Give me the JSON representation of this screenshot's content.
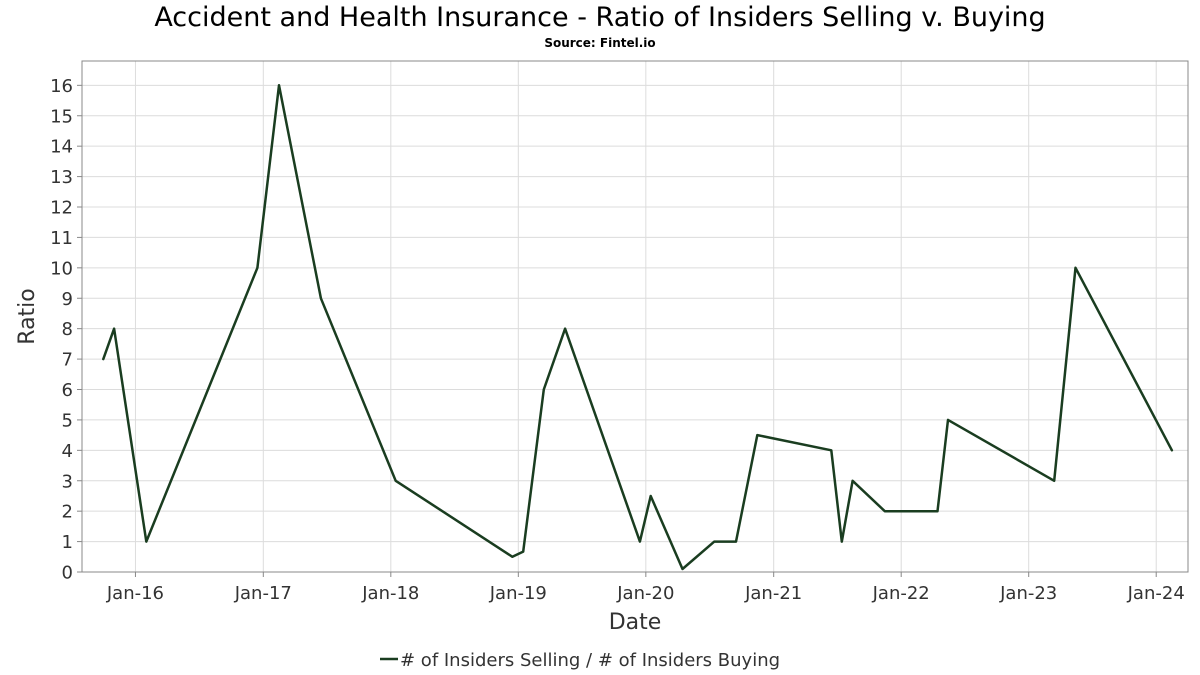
{
  "chart_data": {
    "type": "line",
    "title": "Accident and Health Insurance - Ratio of Insiders Selling v. Buying",
    "subtitle": "Source: Fintel.io",
    "xlabel": "Date",
    "ylabel": "Ratio",
    "xlim": [
      "2015-08-01",
      "2024-04-01"
    ],
    "ylim": [
      0,
      16.8
    ],
    "y_ticks": [
      "0",
      "1",
      "2",
      "3",
      "4",
      "5",
      "6",
      "7",
      "8",
      "9",
      "10",
      "11",
      "12",
      "13",
      "14",
      "15",
      "16"
    ],
    "x_ticks": [
      {
        "date": "2016-01-01",
        "label": "Jan-16"
      },
      {
        "date": "2017-01-01",
        "label": "Jan-17"
      },
      {
        "date": "2018-01-01",
        "label": "Jan-18"
      },
      {
        "date": "2019-01-01",
        "label": "Jan-19"
      },
      {
        "date": "2020-01-01",
        "label": "Jan-20"
      },
      {
        "date": "2021-01-01",
        "label": "Jan-21"
      },
      {
        "date": "2022-01-01",
        "label": "Jan-22"
      },
      {
        "date": "2023-01-01",
        "label": "Jan-23"
      },
      {
        "date": "2024-01-01",
        "label": "Jan-24"
      }
    ],
    "grid": true,
    "legend_position": "bottom-center",
    "series": [
      {
        "name": "# of Insiders Selling / # of Insiders Buying",
        "color": "#1a3d20",
        "x": [
          "2015-10-01",
          "2015-11-01",
          "2016-02-01",
          "2016-12-15",
          "2017-02-15",
          "2017-06-15",
          "2018-01-15",
          "2018-12-15",
          "2019-01-15",
          "2019-03-15",
          "2019-05-15",
          "2019-12-15",
          "2020-01-15",
          "2020-04-15",
          "2020-07-15",
          "2020-09-15",
          "2020-11-15",
          "2021-06-15",
          "2021-07-15",
          "2021-08-15",
          "2021-11-15",
          "2022-04-15",
          "2022-05-15",
          "2023-03-15",
          "2023-05-15",
          "2024-02-15"
        ],
        "y": [
          7,
          8,
          1,
          10,
          16,
          9,
          3,
          0.5,
          0.67,
          6,
          8,
          1,
          2.5,
          0.1,
          1,
          1,
          4.5,
          4,
          1,
          3,
          2,
          2,
          5,
          3,
          10,
          4
        ]
      }
    ]
  }
}
